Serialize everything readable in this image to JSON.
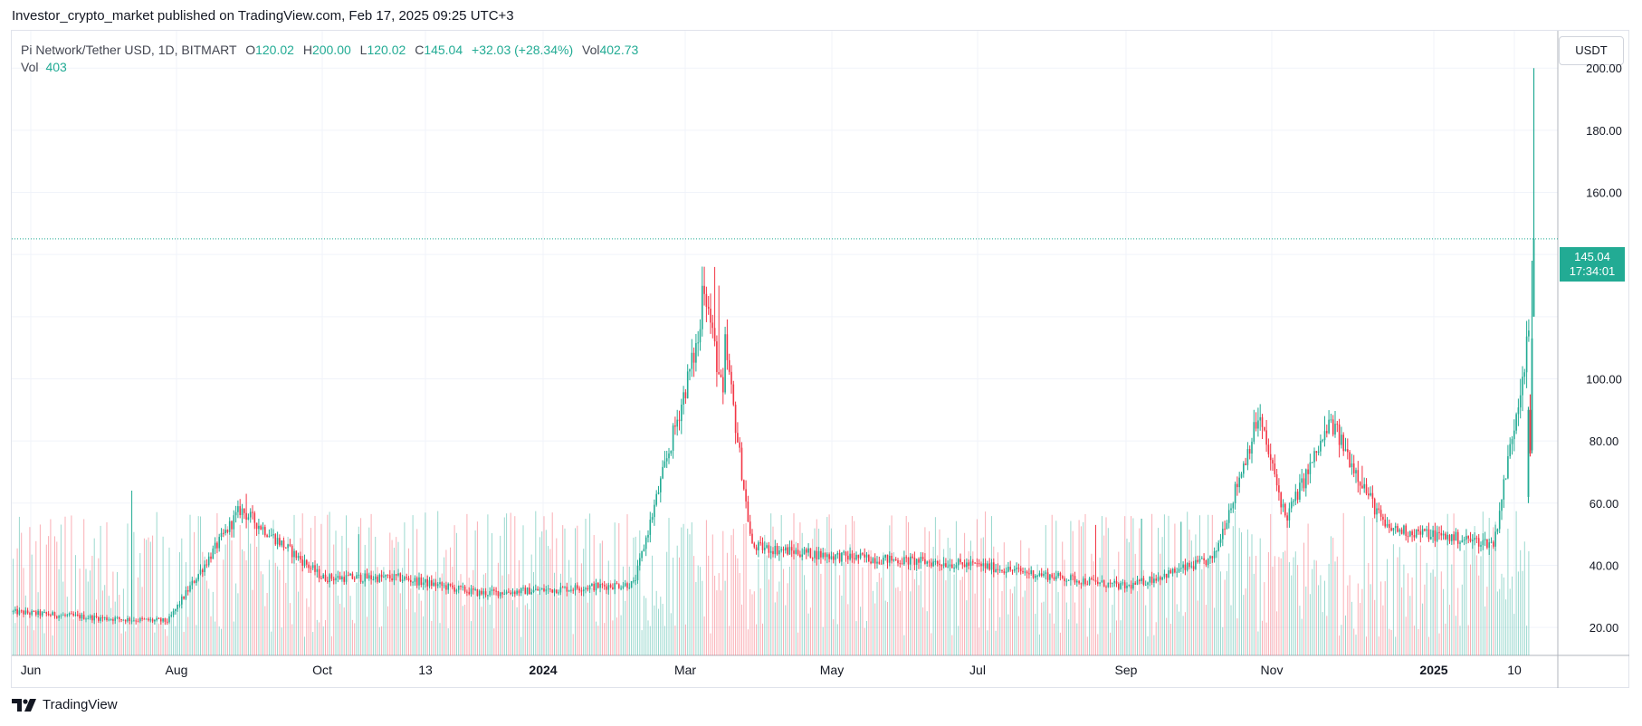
{
  "header": {
    "publisher_line": "Investor_crypto_market published on TradingView.com, Feb 17, 2025 09:25 UTC+3"
  },
  "legend": {
    "symbol": "Pi Network/Tether USD, 1D, BITMART",
    "o_label": "O",
    "o_value": "120.02",
    "h_label": "H",
    "h_value": "200.00",
    "l_label": "L",
    "l_value": "120.02",
    "c_label": "C",
    "c_value": "145.04",
    "change": "+32.03 (+28.34%)",
    "vol_label": "Vol",
    "vol_value": "402.73",
    "vol2_label": "Vol",
    "vol2_value": "403"
  },
  "currency_button": "USDT",
  "price_label": {
    "price": "145.04",
    "countdown": "17:34:01"
  },
  "footer": {
    "logo_text": "TradingView"
  },
  "colors": {
    "up": "#22ab94",
    "down": "#f23645",
    "grid": "#f0f3fa",
    "axis_text": "#131722"
  },
  "chart_data": {
    "type": "candlestick",
    "y_ticks": [
      20,
      40,
      60,
      80,
      100,
      120,
      140,
      160,
      180,
      200
    ],
    "y_tick_labels": [
      "20.00",
      "40.00",
      "60.00",
      "80.00",
      "100.00",
      "",
      "",
      "160.00",
      "180.00",
      "200.00"
    ],
    "x_tick_labels": [
      {
        "label": "Jun",
        "bold": false
      },
      {
        "label": "Aug",
        "bold": false
      },
      {
        "label": "Oct",
        "bold": false
      },
      {
        "label": "13",
        "bold": false
      },
      {
        "label": "2024",
        "bold": true
      },
      {
        "label": "Mar",
        "bold": false
      },
      {
        "label": "May",
        "bold": false
      },
      {
        "label": "Jul",
        "bold": false
      },
      {
        "label": "Sep",
        "bold": false
      },
      {
        "label": "Nov",
        "bold": false
      },
      {
        "label": "2025",
        "bold": true
      },
      {
        "label": "10",
        "bold": false
      }
    ],
    "ylim": [
      11,
      212
    ],
    "last_price": 145.04,
    "last_candle": {
      "open": 120.02,
      "high": 200.0,
      "low": 120.02,
      "close": 145.04
    },
    "approx_close_path": [
      {
        "date": "Jun 2023",
        "close": 25
      },
      {
        "date": "Jul 2023",
        "close": 23
      },
      {
        "date": "Aug 2023",
        "close": 22
      },
      {
        "date": "Late Aug 2023",
        "close": 58
      },
      {
        "date": "Oct 2023",
        "close": 36
      },
      {
        "date": "Nov 2023",
        "close": 36
      },
      {
        "date": "Dec 2023",
        "close": 31
      },
      {
        "date": "Jan 2024",
        "close": 32
      },
      {
        "date": "Feb 2024",
        "close": 34
      },
      {
        "date": "Mar 2024",
        "close": 134
      },
      {
        "date": "Apr 2024",
        "close": 46
      },
      {
        "date": "May 2024",
        "close": 43
      },
      {
        "date": "Jul 2024",
        "close": 40
      },
      {
        "date": "Sep 2024",
        "close": 33
      },
      {
        "date": "Oct 2024",
        "close": 42
      },
      {
        "date": "Late Oct 2024",
        "close": 88
      },
      {
        "date": "Nov 2024",
        "close": 55
      },
      {
        "date": "Late Nov 2024",
        "close": 86
      },
      {
        "date": "Dec 2024",
        "close": 52
      },
      {
        "date": "Jan 2025",
        "close": 47
      },
      {
        "date": "Feb 2025",
        "close": 113
      },
      {
        "date": "Feb 17 2025",
        "close": 145.04
      }
    ]
  }
}
